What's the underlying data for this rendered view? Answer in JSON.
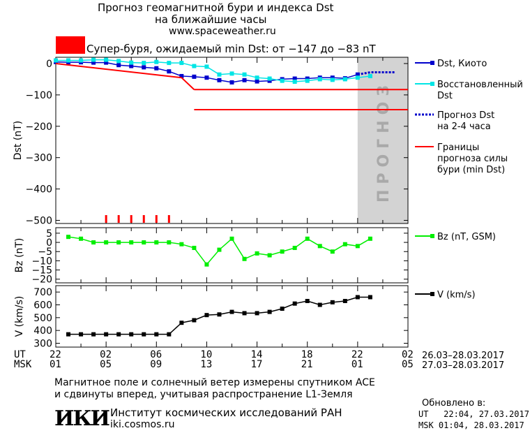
{
  "header": {
    "title_line1": "Прогноз геомагнитной бури и индекса Dst",
    "title_line2": "на ближайшие часы",
    "url": "www.spaceweather.ru",
    "storm_label": "Супер-буря, ожидаемый min Dst: от −147 до −83 nT",
    "storm_color": "#ff0000"
  },
  "chart_data": [
    {
      "type": "line",
      "ylabel": "Dst (nT)",
      "ylim": [
        -510,
        20
      ],
      "yticks": [
        "0",
        "−100",
        "−200",
        "−300",
        "−400",
        "−500"
      ],
      "ytick_values": [
        0,
        -100,
        -200,
        -300,
        -400,
        -500
      ],
      "x_hours_range": [
        0,
        28
      ],
      "forecast_band_hours": [
        24.0,
        28.0
      ],
      "forecast_band_label": "ПРОГНОЗ",
      "storm_range_min_dst": [
        -147,
        -83
      ],
      "event_markers_hours": [
        4,
        5,
        6,
        7,
        8,
        9
      ],
      "series": [
        {
          "name": "Dst, Киото",
          "color": "#0000cc",
          "x": [
            0,
            1,
            2,
            3,
            4,
            5,
            6,
            7,
            8,
            9,
            10,
            11,
            12,
            13,
            14,
            15,
            16,
            17,
            18,
            19,
            20,
            21,
            22,
            23,
            24
          ],
          "y": [
            5,
            4,
            4,
            3,
            3,
            -5,
            -8,
            -12,
            -15,
            -25,
            -40,
            -42,
            -45,
            -53,
            -60,
            -53,
            -57,
            -55,
            -50,
            -48,
            -48,
            -45,
            -45,
            -47,
            -35
          ]
        },
        {
          "name": "Восстановленный Dst",
          "color": "#00e5e5",
          "x": [
            0,
            1,
            2,
            3,
            4,
            5,
            6,
            7,
            8,
            9,
            10,
            11,
            12,
            13,
            14,
            15,
            16,
            17,
            18,
            19,
            20,
            21,
            22,
            23,
            24,
            25
          ],
          "y": [
            10,
            10,
            10,
            12,
            12,
            8,
            3,
            2,
            5,
            2,
            2,
            -8,
            -10,
            -35,
            -32,
            -35,
            -45,
            -48,
            -55,
            -58,
            -55,
            -50,
            -52,
            -50,
            -45,
            -40
          ]
        },
        {
          "name": "Прогноз Dst на 2-4 часа",
          "color": "#0000cc",
          "x": [
            24,
            25,
            26,
            27
          ],
          "y": [
            -35,
            -28,
            -28,
            -28
          ]
        },
        {
          "name": "Границы прогноза силы бури (min Dst)",
          "color": "#ff0000",
          "x_segments": [
            [
              0,
              10
            ],
            [
              10,
              11
            ],
            [
              11,
              28
            ],
            [
              11,
              28
            ]
          ],
          "y_segments": [
            [
              0,
              -45
            ],
            [
              -45,
              -83
            ],
            [
              -83,
              -83
            ],
            [
              -147,
              -147
            ]
          ]
        }
      ]
    },
    {
      "type": "line",
      "ylabel": "Bz (nT)",
      "ylim": [
        -22,
        8
      ],
      "yticks": [
        "5",
        "0",
        "−5",
        "−10",
        "−15",
        "−20"
      ],
      "ytick_values": [
        5,
        0,
        -5,
        -10,
        -15,
        -20
      ],
      "series": [
        {
          "name": "Bz (nT, GSM)",
          "color": "#00ee00",
          "x": [
            1,
            2,
            3,
            4,
            5,
            6,
            7,
            8,
            9,
            10,
            11,
            12,
            13,
            14,
            15,
            16,
            17,
            18,
            19,
            20,
            21,
            22,
            23,
            24,
            25
          ],
          "y": [
            3,
            2,
            0,
            0,
            0,
            0,
            0,
            0,
            0,
            -1,
            -3,
            -12,
            -4,
            2,
            -9,
            -6,
            -7,
            -5,
            -3,
            2,
            -2,
            -5,
            -1,
            -2,
            2
          ]
        }
      ]
    },
    {
      "type": "line",
      "ylabel": "V (km/s)",
      "ylim": [
        270,
        750
      ],
      "yticks": [
        "700",
        "600",
        "500",
        "400",
        "300"
      ],
      "ytick_values": [
        700,
        600,
        500,
        400,
        300
      ],
      "series": [
        {
          "name": "V (km/s)",
          "color": "#000000",
          "x": [
            1,
            2,
            3,
            4,
            5,
            6,
            7,
            8,
            9,
            10,
            11,
            12,
            13,
            14,
            15,
            16,
            17,
            18,
            19,
            20,
            21,
            22,
            23,
            24,
            25
          ],
          "y": [
            370,
            370,
            370,
            370,
            370,
            370,
            370,
            370,
            370,
            460,
            480,
            520,
            525,
            545,
            535,
            535,
            545,
            570,
            610,
            630,
            600,
            620,
            630,
            660,
            660
          ]
        }
      ]
    }
  ],
  "time_axis": {
    "ut_label": "UT",
    "msk_label": "MSK",
    "ut_ticks": [
      "22",
      "02",
      "06",
      "10",
      "14",
      "18",
      "22",
      "02"
    ],
    "msk_ticks": [
      "01",
      "05",
      "09",
      "13",
      "17",
      "21",
      "01",
      "05"
    ],
    "ut_range": "26.03–28.03.2017",
    "msk_range": "27.03–28.03.2017"
  },
  "footer": {
    "note_line1": "Магнитное поле и солнечный ветер измерены спутником ACE",
    "note_line2": "и сдвинуты вперед, учитывая распространение L1-Земля",
    "logo_text": "ИКИ",
    "institute": "Институт космических исследований РАН",
    "institute_url": "iki.cosmos.ru",
    "updated_label": "Обновлено в:",
    "updated_ut": "UT   22:04, 27.03.2017",
    "updated_msk": "MSK 01:04, 28.03.2017"
  }
}
